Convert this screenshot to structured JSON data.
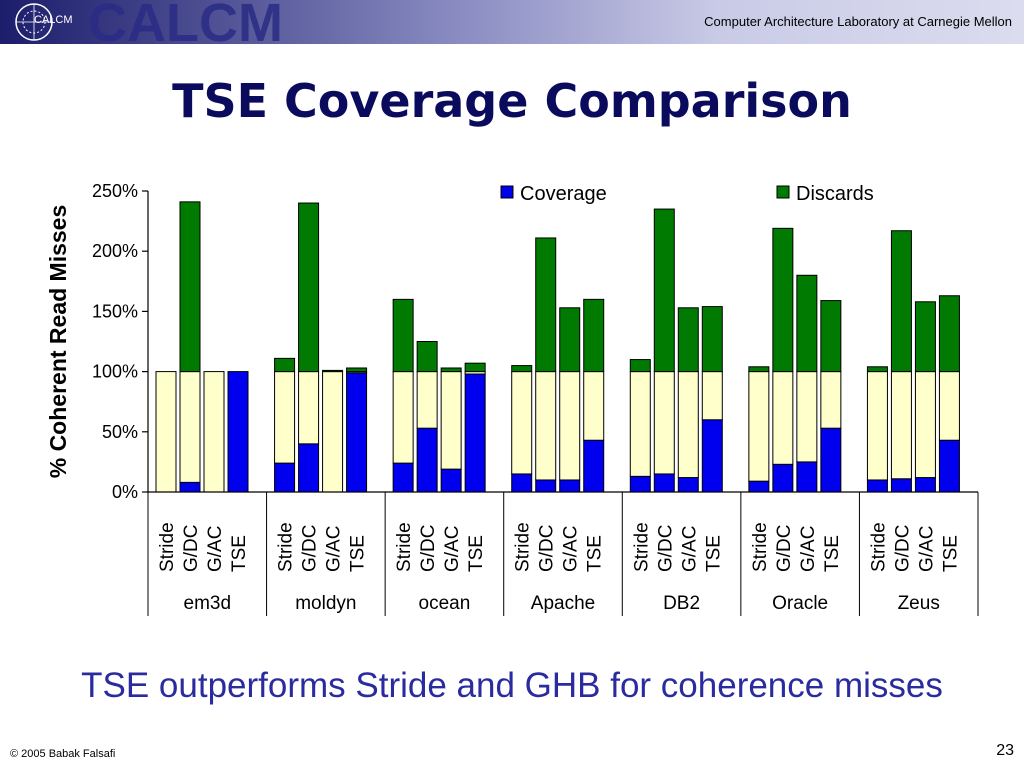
{
  "header": {
    "logo_small": "CALCM",
    "logo_big": "CALCM",
    "lab_name": "Computer Architecture Laboratory at Carnegie Mellon"
  },
  "slide": {
    "title": "TSE Coverage Comparison",
    "subtitle": "TSE outperforms Stride and GHB for coherence misses",
    "copyright": "© 2005 Babak Falsafi",
    "page_number": "23"
  },
  "colors": {
    "coverage": "#0000ee",
    "discards": "#007a00",
    "baseline": "#ffffcc",
    "title": "#0b0b5e",
    "subtitle": "#2b2ba0"
  },
  "chart_data": {
    "type": "bar",
    "ylabel": "% Coherent Read Misses",
    "ylim": [
      0,
      250
    ],
    "yticks": [
      "0%",
      "50%",
      "100%",
      "150%",
      "200%",
      "250%"
    ],
    "legend": [
      "Coverage",
      "Discards"
    ],
    "legend_position": "top",
    "groups": [
      {
        "name": "em3d",
        "bars": [
          {
            "label": "Stride",
            "coverage": 0,
            "discards": 0
          },
          {
            "label": "G/DC",
            "coverage": 8,
            "discards": 141
          },
          {
            "label": "G/AC",
            "coverage": 0,
            "discards": 0
          },
          {
            "label": "TSE",
            "coverage": 100,
            "discards": 0
          }
        ]
      },
      {
        "name": "moldyn",
        "bars": [
          {
            "label": "Stride",
            "coverage": 24,
            "discards": 11
          },
          {
            "label": "G/DC",
            "coverage": 40,
            "discards": 140
          },
          {
            "label": "G/AC",
            "coverage": 0,
            "discards": 1
          },
          {
            "label": "TSE",
            "coverage": 99,
            "discards": 3
          }
        ]
      },
      {
        "name": "ocean",
        "bars": [
          {
            "label": "Stride",
            "coverage": 24,
            "discards": 60
          },
          {
            "label": "G/DC",
            "coverage": 53,
            "discards": 25
          },
          {
            "label": "G/AC",
            "coverage": 19,
            "discards": 3
          },
          {
            "label": "TSE",
            "coverage": 98,
            "discards": 7
          }
        ]
      },
      {
        "name": "Apache",
        "bars": [
          {
            "label": "Stride",
            "coverage": 15,
            "discards": 5
          },
          {
            "label": "G/DC",
            "coverage": 10,
            "discards": 111
          },
          {
            "label": "G/AC",
            "coverage": 10,
            "discards": 53
          },
          {
            "label": "TSE",
            "coverage": 43,
            "discards": 60
          }
        ]
      },
      {
        "name": "DB2",
        "bars": [
          {
            "label": "Stride",
            "coverage": 13,
            "discards": 10
          },
          {
            "label": "G/DC",
            "coverage": 15,
            "discards": 135
          },
          {
            "label": "G/AC",
            "coverage": 12,
            "discards": 53
          },
          {
            "label": "TSE",
            "coverage": 60,
            "discards": 54
          }
        ]
      },
      {
        "name": "Oracle",
        "bars": [
          {
            "label": "Stride",
            "coverage": 9,
            "discards": 4
          },
          {
            "label": "G/DC",
            "coverage": 23,
            "discards": 119
          },
          {
            "label": "G/AC",
            "coverage": 25,
            "discards": 80
          },
          {
            "label": "TSE",
            "coverage": 53,
            "discards": 59
          }
        ]
      },
      {
        "name": "Zeus",
        "bars": [
          {
            "label": "Stride",
            "coverage": 10,
            "discards": 4
          },
          {
            "label": "G/DC",
            "coverage": 11,
            "discards": 117
          },
          {
            "label": "G/AC",
            "coverage": 12,
            "discards": 58
          },
          {
            "label": "TSE",
            "coverage": 43,
            "discards": 63
          }
        ]
      }
    ]
  }
}
